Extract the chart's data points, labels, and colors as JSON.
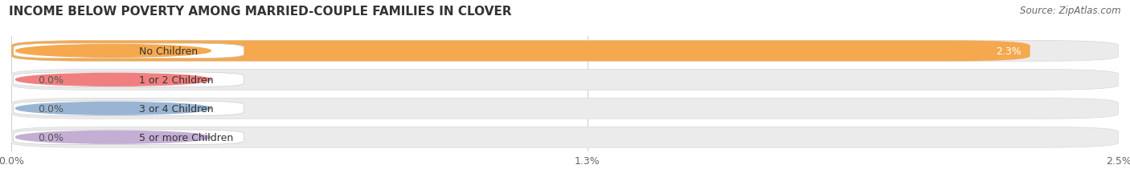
{
  "title": "INCOME BELOW POVERTY AMONG MARRIED-COUPLE FAMILIES IN CLOVER",
  "source": "Source: ZipAtlas.com",
  "categories": [
    "No Children",
    "1 or 2 Children",
    "3 or 4 Children",
    "5 or more Children"
  ],
  "values": [
    2.3,
    0.0,
    0.0,
    0.0
  ],
  "bar_colors": [
    "#f5a84e",
    "#f08080",
    "#9ab5d4",
    "#c4aed4"
  ],
  "xlim": [
    0,
    2.5
  ],
  "xticks": [
    0.0,
    1.3,
    2.5
  ],
  "xtick_labels": [
    "0.0%",
    "1.3%",
    "2.5%"
  ],
  "background_color": "#ffffff",
  "row_bg_light": "#f0f0f0",
  "row_bg_dark": "#e4e4e4",
  "title_fontsize": 11,
  "source_fontsize": 8.5,
  "label_fontsize": 9,
  "value_fontsize": 9,
  "tick_fontsize": 9
}
